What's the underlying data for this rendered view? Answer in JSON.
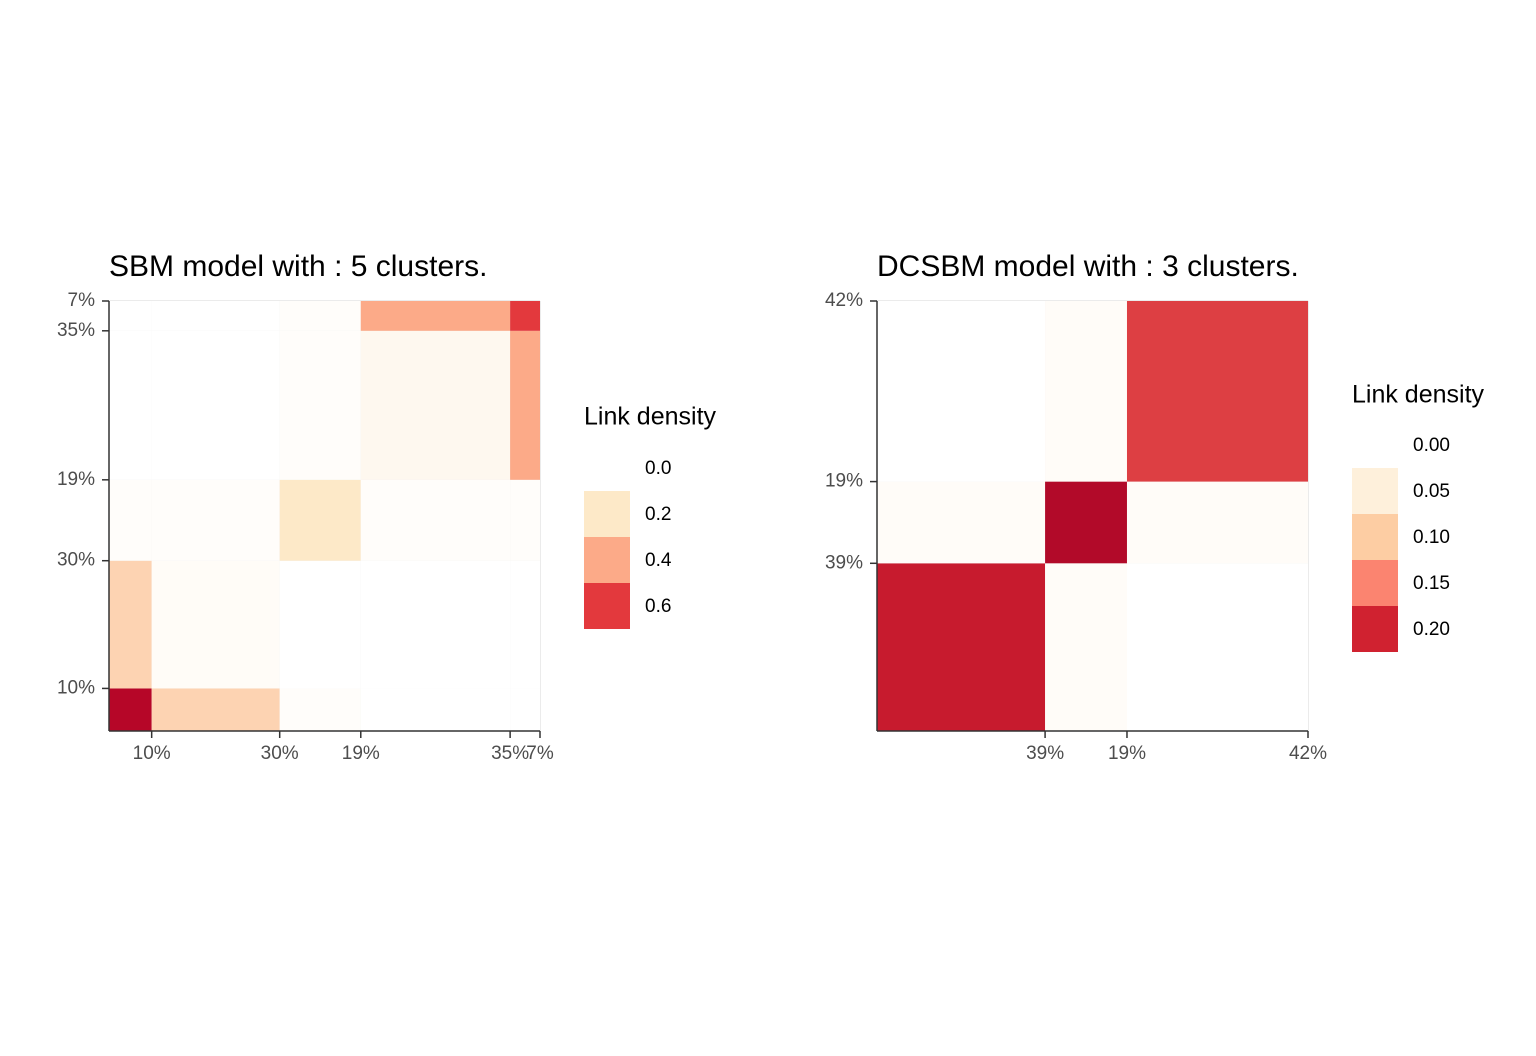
{
  "chart_data": [
    {
      "type": "heatmap",
      "title": "SBM model with : 5 clusters.",
      "x_clusters": [
        {
          "value": 10,
          "label": "10%"
        },
        {
          "value": 30,
          "label": "30%"
        },
        {
          "value": 19,
          "label": "19%"
        },
        {
          "value": 35,
          "label": "35%"
        },
        {
          "value": 7,
          "label": "7%"
        }
      ],
      "y_clusters": [
        {
          "value": 10,
          "label": "10%"
        },
        {
          "value": 30,
          "label": "30%"
        },
        {
          "value": 19,
          "label": "19%"
        },
        {
          "value": 35,
          "label": "35%"
        },
        {
          "value": 7,
          "label": "7%"
        }
      ],
      "values": [
        [
          0.78,
          0.27,
          0.02,
          0,
          0
        ],
        [
          0.27,
          0.03,
          0,
          0,
          0
        ],
        [
          0.02,
          0.02,
          0.2,
          0.02,
          0.02
        ],
        [
          0,
          0,
          0.02,
          0.06,
          0.4
        ],
        [
          0,
          0,
          0.02,
          0.4,
          0.6
        ]
      ],
      "fill_lim": [
        0,
        0.8
      ],
      "palette": [
        "#ffffff",
        "#fde9c8",
        "#fcaa88",
        "#e3393d",
        "#b10026"
      ],
      "grid": true,
      "legend": {
        "title": "Link density",
        "ticks": [
          {
            "value": 0,
            "label": "0.0"
          },
          0.2,
          0.4,
          0.6
        ]
      }
    },
    {
      "type": "heatmap",
      "title": "DCSBM model with : 3 clusters.",
      "x_clusters": [
        {
          "value": 39,
          "label": "39%"
        },
        {
          "value": 19,
          "label": "19%"
        },
        {
          "value": 42,
          "label": "42%"
        }
      ],
      "y_clusters": [
        {
          "value": 39,
          "label": "39%"
        },
        {
          "value": 19,
          "label": "19%"
        },
        {
          "value": 42,
          "label": "42%"
        }
      ],
      "values": [
        [
          0.21,
          0.01,
          0
        ],
        [
          0.01,
          0.235,
          0.01
        ],
        [
          0,
          0.01,
          0.185
        ]
      ],
      "fill_lim": [
        0,
        0.25
      ],
      "palette": [
        "#ffffff",
        "#fef0db",
        "#fdcda3",
        "#fb8470",
        "#d02230",
        "#a50026"
      ],
      "grid": true,
      "legend": {
        "title": "Link density",
        "ticks": [
          {
            "value": 0,
            "label": "0.00"
          },
          0.05,
          {
            "value": 0.1,
            "label": "0.10"
          },
          0.15,
          {
            "value": 0.2,
            "label": "0.20"
          }
        ]
      }
    }
  ]
}
